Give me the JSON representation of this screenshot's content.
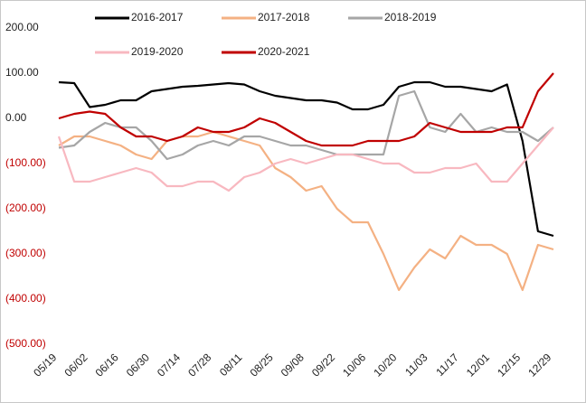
{
  "chart_data": {
    "type": "line",
    "categories": [
      "05/19",
      null,
      "06/02",
      null,
      "06/16",
      null,
      "06/30",
      null,
      "07/14",
      null,
      "07/28",
      null,
      "08/11",
      null,
      "08/25",
      null,
      "09/08",
      null,
      "09/22",
      null,
      "10/06",
      null,
      "10/20",
      null,
      "11/03",
      null,
      "11/17",
      null,
      "12/01",
      null,
      "12/15",
      null,
      "12/29"
    ],
    "series": [
      {
        "name": "2016-2017",
        "color": "#000000",
        "values": [
          80,
          78,
          25,
          30,
          40,
          40,
          60,
          65,
          70,
          72,
          75,
          78,
          75,
          60,
          50,
          45,
          40,
          40,
          35,
          20,
          20,
          30,
          70,
          80,
          80,
          70,
          70,
          65,
          60,
          75,
          -50,
          -250,
          -260
        ]
      },
      {
        "name": "2017-2018",
        "color": "#f4b183",
        "values": [
          -60,
          -40,
          -40,
          -50,
          -60,
          -80,
          -90,
          -50,
          -40,
          -40,
          -30,
          -40,
          -50,
          -60,
          -110,
          -130,
          -160,
          -150,
          -200,
          -230,
          -230,
          -300,
          -380,
          -330,
          -290,
          -310,
          -260,
          -280,
          -280,
          -300,
          -380,
          -280,
          -290
        ]
      },
      {
        "name": "2018-2019",
        "color": "#a6a6a6",
        "values": [
          -65,
          -60,
          -30,
          -10,
          -20,
          -20,
          -50,
          -90,
          -80,
          -60,
          -50,
          -60,
          -40,
          -40,
          -50,
          -60,
          -60,
          -70,
          -80,
          -80,
          -80,
          -80,
          50,
          60,
          -20,
          -30,
          10,
          -30,
          -20,
          -30,
          -30,
          -50,
          -20
        ]
      },
      {
        "name": "2019-2020",
        "color": "#f8b8c0",
        "values": [
          -40,
          -140,
          -140,
          -130,
          -120,
          -110,
          -120,
          -150,
          -150,
          -140,
          -140,
          -160,
          -130,
          -120,
          -100,
          -90,
          -100,
          -90,
          -80,
          -80,
          -90,
          -100,
          -100,
          -120,
          -120,
          -110,
          -110,
          -100,
          -140,
          -140,
          -100,
          -60,
          -20
        ]
      },
      {
        "name": "2020-2021",
        "color": "#c00000",
        "values": [
          0,
          10,
          15,
          10,
          -20,
          -40,
          -40,
          -50,
          -40,
          -20,
          -30,
          -30,
          -20,
          0,
          -10,
          -30,
          -50,
          -60,
          -60,
          -60,
          -50,
          -50,
          -50,
          -40,
          -10,
          -20,
          -30,
          -30,
          -30,
          -20,
          -20,
          60,
          100
        ]
      }
    ],
    "ylim": [
      -500,
      200
    ],
    "yticks": [
      {
        "value": 200,
        "label": "200.00"
      },
      {
        "value": 100,
        "label": "100.00"
      },
      {
        "value": 0,
        "label": "0.00"
      },
      {
        "value": -100,
        "label": "(100.00)"
      },
      {
        "value": -200,
        "label": "(200.00)"
      },
      {
        "value": -300,
        "label": "(300.00)"
      },
      {
        "value": -400,
        "label": "(400.00)"
      },
      {
        "value": -500,
        "label": "(500.00)"
      }
    ],
    "negative_tick_color": "#c00000",
    "grid": false
  }
}
